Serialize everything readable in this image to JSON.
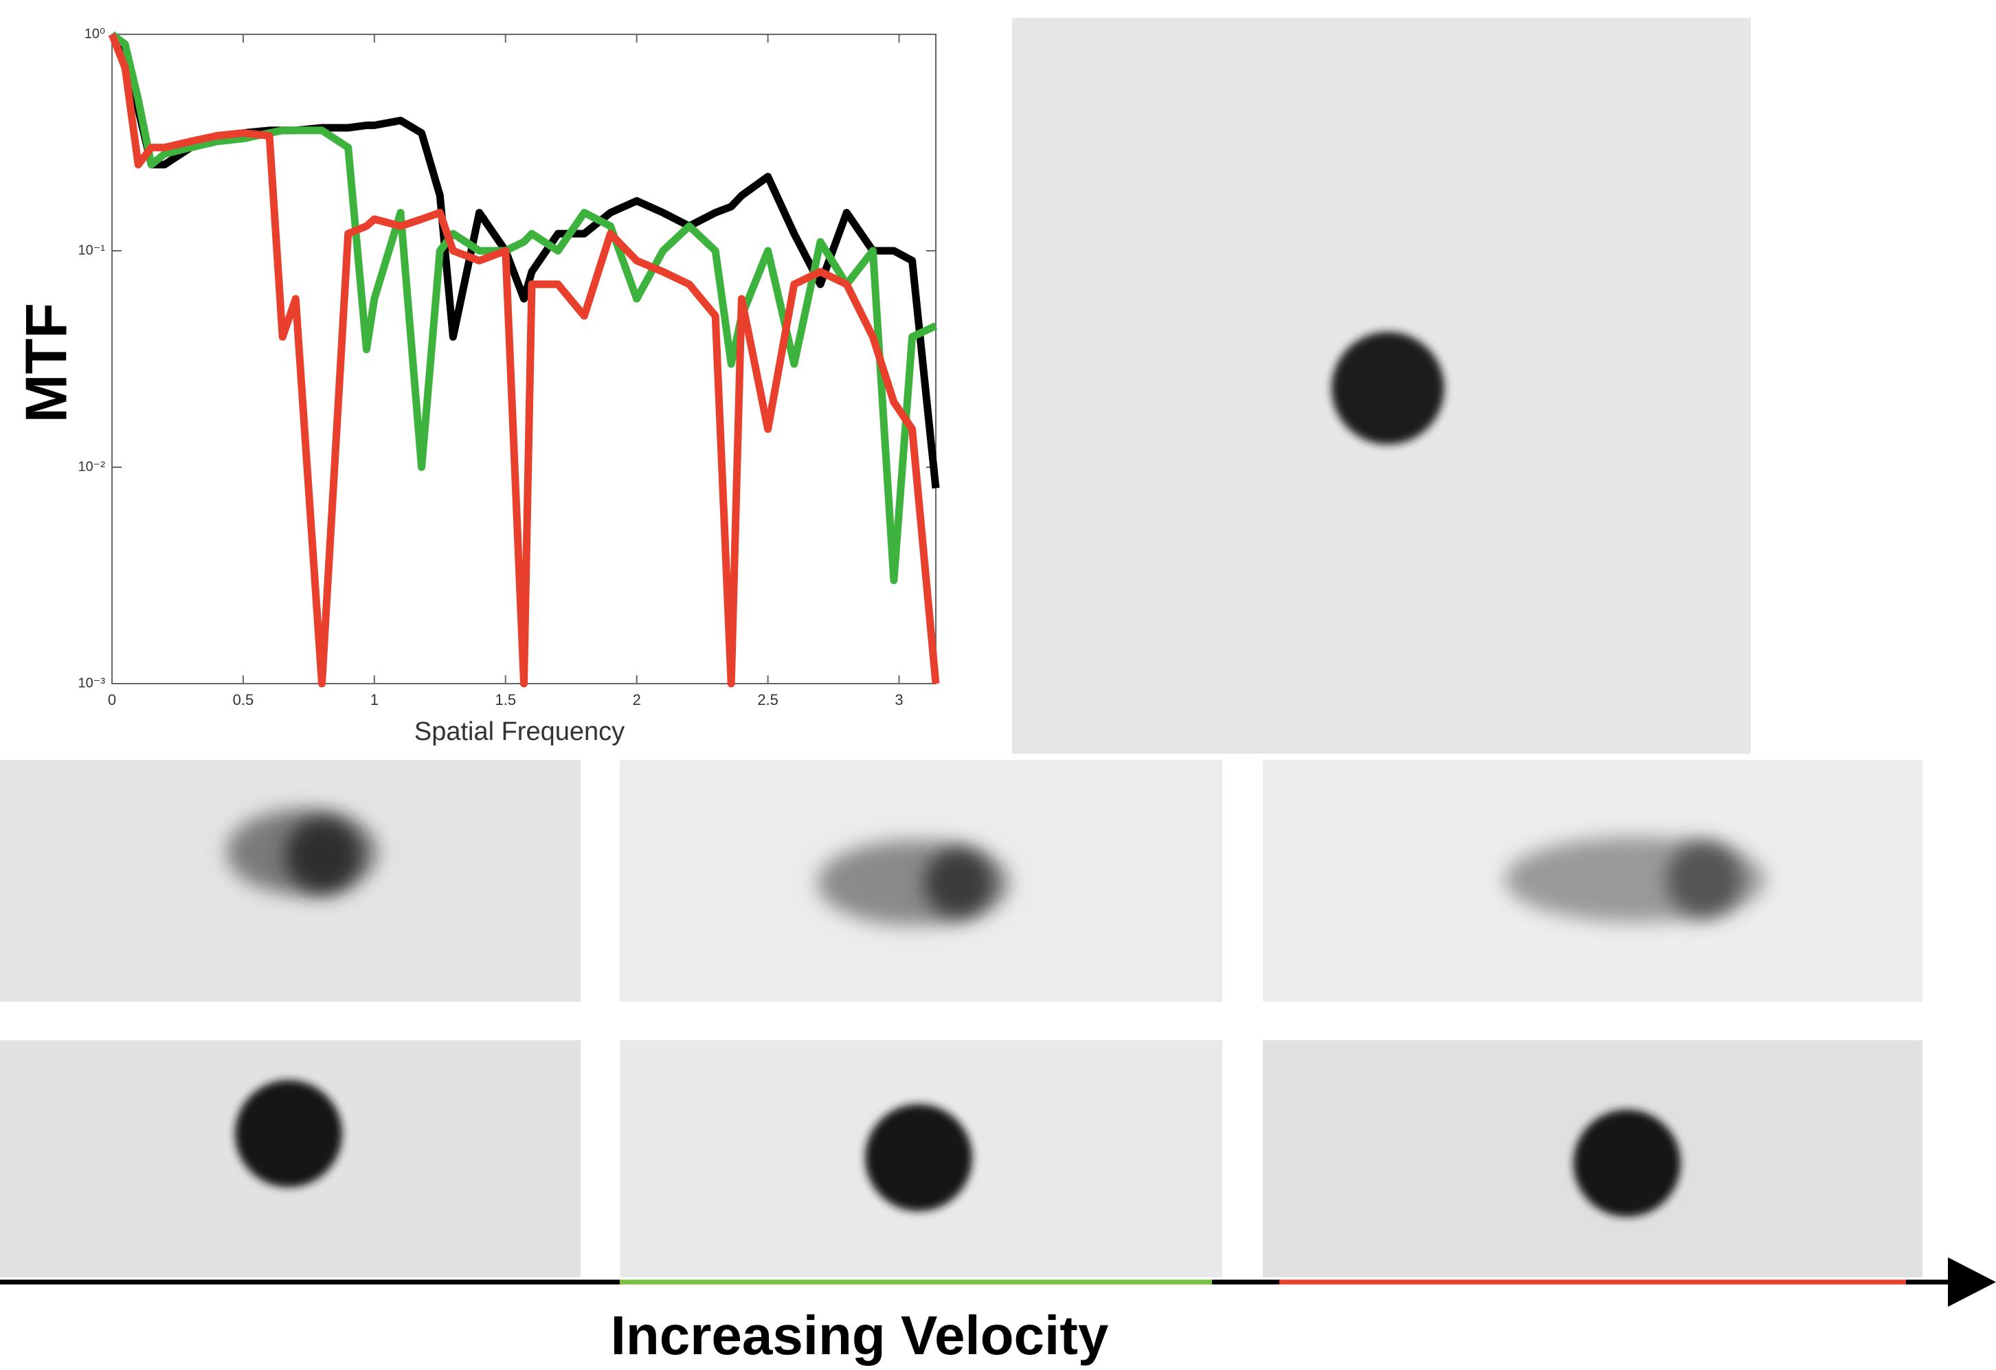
{
  "chart_data": {
    "type": "line",
    "x_label": "Spatial Frequency",
    "y_label": "MTF",
    "caption": "Increasing Velocity",
    "log_y": true,
    "xlim": [
      0,
      3.14
    ],
    "xticks": [
      0,
      0.5,
      1,
      1.5,
      2,
      2.5,
      3
    ],
    "ylim": [
      0.001,
      1
    ],
    "yticks": [
      {
        "value": 1,
        "label": "10⁰"
      },
      {
        "value": 0.1,
        "label": "10⁻¹"
      },
      {
        "value": 0.01,
        "label": "10⁻²"
      },
      {
        "value": 0.001,
        "label": "10⁻³"
      }
    ],
    "x": [
      0,
      0.05,
      0.1,
      0.15,
      0.2,
      0.3,
      0.4,
      0.5,
      0.6,
      0.65,
      0.7,
      0.8,
      0.9,
      0.97,
      1.0,
      1.1,
      1.18,
      1.25,
      1.3,
      1.4,
      1.5,
      1.57,
      1.6,
      1.7,
      1.8,
      1.9,
      2.0,
      2.1,
      2.2,
      2.3,
      2.36,
      2.4,
      2.5,
      2.6,
      2.7,
      2.8,
      2.9,
      2.98,
      3.05,
      3.14
    ],
    "series": [
      {
        "color": "#000000",
        "values": [
          1,
          0.8,
          0.45,
          0.25,
          0.25,
          0.3,
          0.33,
          0.35,
          0.36,
          0.36,
          0.36,
          0.37,
          0.37,
          0.38,
          0.38,
          0.4,
          0.35,
          0.18,
          0.04,
          0.15,
          0.1,
          0.06,
          0.08,
          0.12,
          0.12,
          0.15,
          0.17,
          0.15,
          0.13,
          0.15,
          0.16,
          0.18,
          0.22,
          0.12,
          0.07,
          0.15,
          0.1,
          0.1,
          0.09,
          0.008
        ]
      },
      {
        "color": "#3db33d",
        "values": [
          1,
          0.9,
          0.5,
          0.25,
          0.28,
          0.3,
          0.32,
          0.33,
          0.35,
          0.36,
          0.36,
          0.36,
          0.3,
          0.035,
          0.06,
          0.15,
          0.01,
          0.1,
          0.12,
          0.1,
          0.1,
          0.11,
          0.12,
          0.1,
          0.15,
          0.13,
          0.06,
          0.1,
          0.13,
          0.1,
          0.03,
          0.05,
          0.1,
          0.03,
          0.11,
          0.07,
          0.1,
          0.003,
          0.04,
          0.045
        ]
      },
      {
        "color": "#e8402c",
        "values": [
          1,
          0.7,
          0.25,
          0.3,
          0.3,
          0.32,
          0.34,
          0.35,
          0.34,
          0.04,
          0.06,
          0.001,
          0.12,
          0.13,
          0.14,
          0.13,
          0.14,
          0.15,
          0.1,
          0.09,
          0.1,
          0.001,
          0.07,
          0.07,
          0.05,
          0.12,
          0.09,
          0.08,
          0.07,
          0.05,
          0.001,
          0.06,
          0.015,
          0.07,
          0.08,
          0.07,
          0.04,
          0.02,
          0.015,
          0.001
        ]
      }
    ]
  }
}
